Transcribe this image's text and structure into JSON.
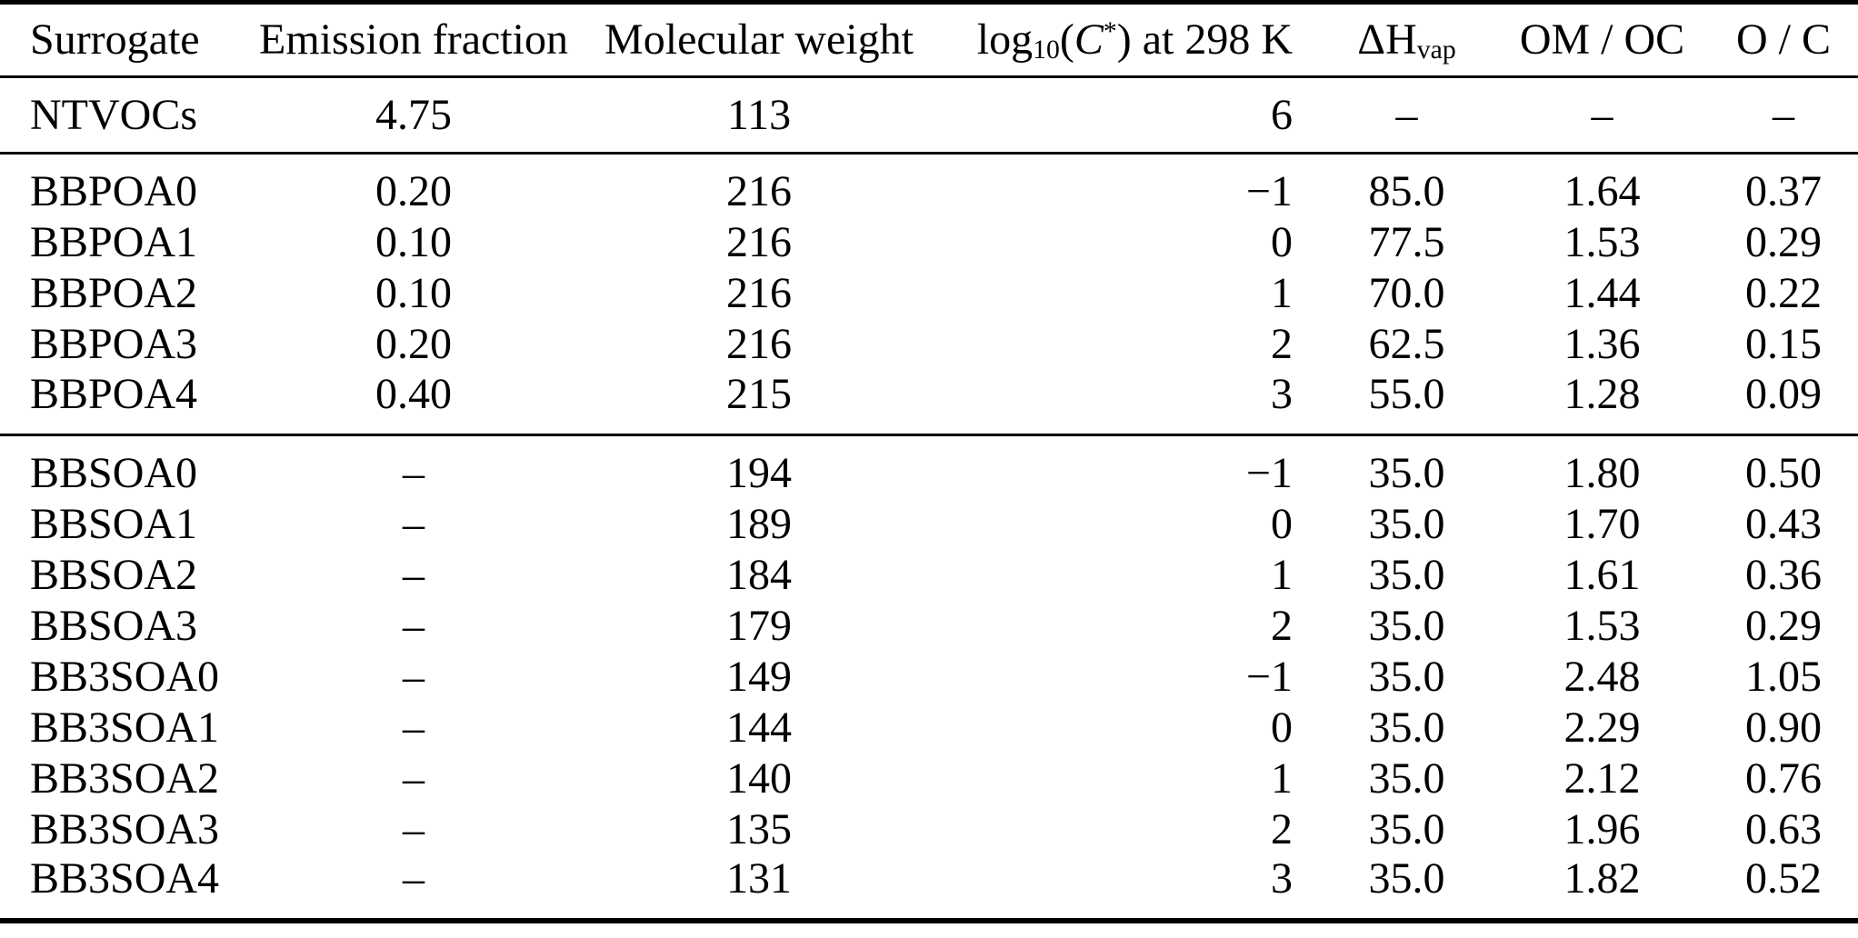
{
  "table": {
    "background": "#ffffff",
    "text_color": "#000000",
    "rule_color": "#000000",
    "columns": [
      {
        "key": "surrogate",
        "label": "Surrogate"
      },
      {
        "key": "emission-fraction",
        "label": "Emission fraction"
      },
      {
        "key": "molecular-weight",
        "label": "Molecular weight"
      },
      {
        "key": "log10-cstar-298k",
        "label_parts": [
          {
            "t": "log"
          },
          {
            "t": "10",
            "sub": true
          },
          {
            "t": "("
          },
          {
            "t": "C",
            "italic": true
          },
          {
            "t": "*",
            "sup": true
          },
          {
            "t": ") at 298 K"
          }
        ]
      },
      {
        "key": "delta-h-vap",
        "label_parts": [
          {
            "t": "ΔH"
          },
          {
            "t": "vap",
            "sub": true
          }
        ]
      },
      {
        "key": "om-oc",
        "label": "OM / OC"
      },
      {
        "key": "o-c",
        "label": "O / C"
      }
    ],
    "groups": [
      {
        "name": "ntvoc",
        "rows": [
          [
            "NTVOCs",
            "4.75",
            "113",
            "6",
            "–",
            "–",
            "–"
          ]
        ]
      },
      {
        "name": "bbpoa",
        "rows": [
          [
            "BBPOA0",
            "0.20",
            "216",
            "−1",
            "85.0",
            "1.64",
            "0.37"
          ],
          [
            "BBPOA1",
            "0.10",
            "216",
            "0",
            "77.5",
            "1.53",
            "0.29"
          ],
          [
            "BBPOA2",
            "0.10",
            "216",
            "1",
            "70.0",
            "1.44",
            "0.22"
          ],
          [
            "BBPOA3",
            "0.20",
            "216",
            "2",
            "62.5",
            "1.36",
            "0.15"
          ],
          [
            "BBPOA4",
            "0.40",
            "215",
            "3",
            "55.0",
            "1.28",
            "0.09"
          ]
        ]
      },
      {
        "name": "bbsoa",
        "rows": [
          [
            "BBSOA0",
            "–",
            "194",
            "−1",
            "35.0",
            "1.80",
            "0.50"
          ],
          [
            "BBSOA1",
            "–",
            "189",
            "0",
            "35.0",
            "1.70",
            "0.43"
          ],
          [
            "BBSOA2",
            "–",
            "184",
            "1",
            "35.0",
            "1.61",
            "0.36"
          ],
          [
            "BBSOA3",
            "–",
            "179",
            "2",
            "35.0",
            "1.53",
            "0.29"
          ],
          [
            "BB3SOA0",
            "–",
            "149",
            "−1",
            "35.0",
            "2.48",
            "1.05"
          ],
          [
            "BB3SOA1",
            "–",
            "144",
            "0",
            "35.0",
            "2.29",
            "0.90"
          ],
          [
            "BB3SOA2",
            "–",
            "140",
            "1",
            "35.0",
            "2.12",
            "0.76"
          ],
          [
            "BB3SOA3",
            "–",
            "135",
            "2",
            "35.0",
            "1.96",
            "0.63"
          ],
          [
            "BB3SOA4",
            "–",
            "131",
            "3",
            "35.0",
            "1.82",
            "0.52"
          ]
        ]
      }
    ]
  }
}
